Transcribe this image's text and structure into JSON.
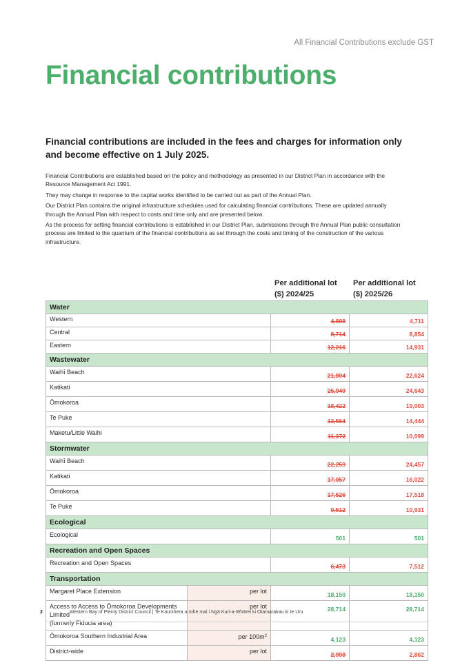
{
  "header": {
    "gst_note": "All Financial Contributions exclude GST"
  },
  "title": "Financial contributions",
  "subtitle": "Financial contributions are included in the fees and charges for information only and become effective on 1 July 2025.",
  "paragraphs": [
    "Financial Contributions are established based on the policy and methodology as presented in our District Plan in accordance with the Resource Management Act 1991.",
    "They may change in response to the capital works identified to be carried out as part of the Annual Plan.",
    "Our District Plan contains the original infrastructure schedules used for calculating financial contributions. These are updated annually through the Annual Plan with respect to costs and time only and are presented below.",
    "As the process for setting financial contributions is established in our District Plan, submissions through the Annual Plan public consultation process are limited to the quantum of the financial contributions as set through the costs and timing of the construction of the various infrastructure."
  ],
  "columns": {
    "col1_line1": "Per additional lot",
    "col1_line2": "($) 2024/25",
    "col2_line1": "Per additional lot",
    "col2_line2": "($) 2025/26"
  },
  "sections": {
    "water": {
      "title": "Water",
      "rows": [
        {
          "name": "Western",
          "old": "4,808",
          "new": "4,711"
        },
        {
          "name": "Central",
          "old": "8,714",
          "new": "8,854"
        },
        {
          "name": "Eastern",
          "old": "12,216",
          "new": "14,931"
        }
      ]
    },
    "wastewater": {
      "title": "Wastewater",
      "rows": [
        {
          "name": "Waihī Beach",
          "old": "21,804",
          "new": "22,624"
        },
        {
          "name": "Katikati",
          "old": "25,949",
          "new": "24,643"
        },
        {
          "name": "Ōmokoroa",
          "old": "18,422",
          "new": "19,003"
        },
        {
          "name": "Te Puke",
          "old": "13,564",
          "new": "14,444"
        },
        {
          "name": "Maketu/Little Waihi",
          "old": "11,372",
          "new": "10,099"
        }
      ]
    },
    "stormwater": {
      "title": "Stormwater",
      "rows": [
        {
          "name": "Waihī Beach",
          "old": "22,259",
          "new": "24,457"
        },
        {
          "name": "Katikati",
          "old": "17,057",
          "new": "16,022"
        },
        {
          "name": "Ōmokoroa",
          "old": "17,526",
          "new": "17,518"
        },
        {
          "name": "Te Puke",
          "old": "9,512",
          "new": "10,931"
        }
      ]
    },
    "ecological": {
      "title": "Ecological",
      "rows": [
        {
          "name": "Ecological",
          "old": "501",
          "new": "501"
        }
      ]
    },
    "recreation": {
      "title": "Recreation and Open Spaces",
      "rows": [
        {
          "name": "Recreation and Open Spaces",
          "old": "6,473",
          "new": "7,512"
        }
      ]
    },
    "transportation": {
      "title": "Transportation",
      "rows": [
        {
          "name": "Margaret Place Extension",
          "unit": "per lot",
          "old": "18,150",
          "new": "18,150"
        },
        {
          "name_line1": "Access to Access to Ōmokoroa Developments Limited",
          "name_line2": "(formerly Fiducia area)",
          "unit": "per lot",
          "old": "28,714",
          "new": "28,714"
        },
        {
          "name": "Ōmokoroa Southern Industrial Area",
          "unit": "per 100m",
          "unit_sup": "2",
          "old": "4,123",
          "new": "4,123"
        },
        {
          "name": "District-wide",
          "unit": "per lot",
          "old": "2,998",
          "new": "2,862"
        }
      ]
    }
  },
  "footer": {
    "page_number": "2",
    "text": "Western Bay of Plenty District Council  |  Te Kaunihera a rohe mai i Ngā Kuri-a-Whārei ki Otamarakau ki te Uru"
  },
  "colors": {
    "green": "#4cae6b",
    "red": "#e04b3c",
    "section_bg": "#c8e6cc",
    "unit_bg": "#fbeee8"
  }
}
